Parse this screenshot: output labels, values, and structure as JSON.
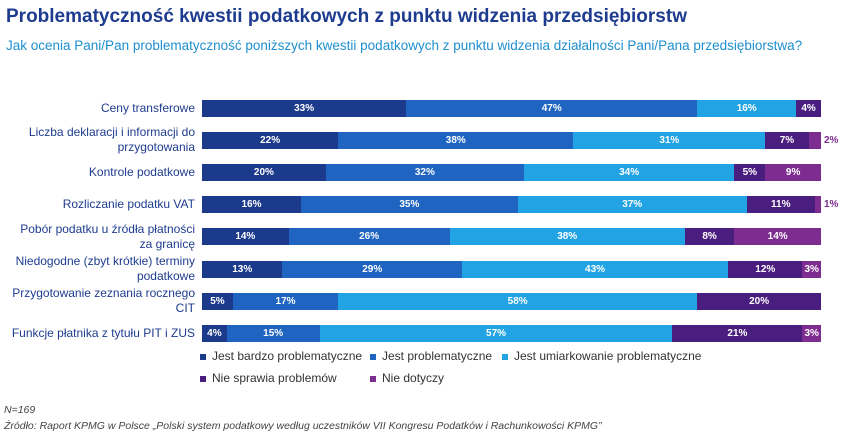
{
  "chart_data": {
    "type": "stacked-bar-horizontal",
    "title": "Problematyczność kwestii podatkowych z punktu widzenia przedsiębiorstw",
    "subtitle": "Jak ocenia Pani/Pan problematyczność poniższych kwestii podatkowych z punktu widzenia działalności Pani/Pana przedsiębiorstwa?",
    "categories": [
      "Ceny transferowe",
      "Liczba deklaracji i informacji do przygotowania",
      "Kontrole podatkowe",
      "Rozliczanie podatku VAT",
      "Pobór podatku u źródła płatności za granicę",
      "Niedogodne (zbyt krótkie) terminy podatkowe",
      "Przygotowanie zeznania rocznego CIT",
      "Funkcje płatnika z tytułu PIT i ZUS"
    ],
    "xlim": [
      0,
      100
    ],
    "series": [
      {
        "name": "Jest bardzo problematyczne",
        "color": "#1c3a8c",
        "values": [
          33,
          22,
          20,
          16,
          14,
          13,
          5,
          4
        ],
        "value_labels": [
          "33%",
          "22%",
          "20%",
          "16%",
          "14%",
          "13%",
          "5%",
          "4%"
        ]
      },
      {
        "name": "Jest problematyczne",
        "color": "#1f64c0",
        "values": [
          47,
          38,
          32,
          35,
          26,
          29,
          17,
          15
        ],
        "value_labels": [
          "47%",
          "38%",
          "32%",
          "35%",
          "26%",
          "29%",
          "17%",
          "15%"
        ]
      },
      {
        "name": "Jest umiarkowanie problematyczne",
        "color": "#22a3e3",
        "values": [
          16,
          31,
          34,
          37,
          38,
          43,
          58,
          57
        ],
        "value_labels": [
          "16%",
          "31%",
          "34%",
          "37%",
          "38%",
          "43%",
          "58%",
          "57%"
        ]
      },
      {
        "name": "Nie sprawia problemów",
        "color": "#4a1e7e",
        "values": [
          4,
          7,
          5,
          11,
          8,
          12,
          20,
          21
        ],
        "value_labels": [
          "4%",
          "7%",
          "5%",
          "11%",
          "8%",
          "12%",
          "20%",
          "21%"
        ]
      },
      {
        "name": "Nie dotyczy",
        "color": "#7d2c8f",
        "values": [
          null,
          2,
          9,
          1,
          14,
          3,
          null,
          3
        ],
        "value_labels": [
          null,
          "2%",
          "9%",
          "1%",
          "14%",
          "3%",
          null,
          "3%"
        ]
      }
    ],
    "notes": [
      "N=169",
      "Źródło: Raport KPMG w Polsce „Polski system podatkowy według uczestników VII Kongresu Podatków i Rachunkowości KPMG”"
    ]
  }
}
